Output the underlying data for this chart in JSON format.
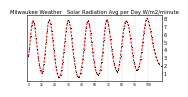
{
  "title": "Milwaukee Weather   Solar Radiation Avg per Day W/m2/minute",
  "bg_color": "#ffffff",
  "line_color": "#dd0000",
  "dot_color": "#000000",
  "grid_color": "#aaaaaa",
  "y_values": [
    3.2,
    4.1,
    5.8,
    7.2,
    7.8,
    7.5,
    6.8,
    5.5,
    4.2,
    3.0,
    2.1,
    1.4,
    1.0,
    1.3,
    2.2,
    3.5,
    5.0,
    6.5,
    7.6,
    7.9,
    7.4,
    6.5,
    5.3,
    4.0,
    2.8,
    1.8,
    1.0,
    0.6,
    0.5,
    0.8,
    1.5,
    2.5,
    3.8,
    5.2,
    6.5,
    7.5,
    7.9,
    7.6,
    6.8,
    5.6,
    4.2,
    3.0,
    2.0,
    1.2,
    0.7,
    0.5,
    0.6,
    1.0,
    1.8,
    2.8,
    4.0,
    5.5,
    6.8,
    7.6,
    7.8,
    7.2,
    6.2,
    5.0,
    3.7,
    2.6,
    1.8,
    1.2,
    0.9,
    0.8,
    1.0,
    1.5,
    2.5,
    3.8,
    5.3,
    6.8,
    7.7,
    7.9,
    7.4,
    6.5,
    5.4,
    4.2,
    3.2,
    2.4,
    1.8,
    1.4,
    1.2,
    1.5,
    2.2,
    3.2,
    4.5,
    5.8,
    6.9,
    7.5,
    7.8,
    7.6,
    7.2,
    6.5,
    5.5,
    4.4,
    3.4,
    2.5,
    1.9,
    1.5,
    1.4,
    1.6,
    2.0,
    2.8,
    3.8,
    5.0,
    6.2,
    7.2,
    7.9,
    8.1,
    7.8,
    7.2,
    6.5,
    5.7,
    4.9,
    4.2,
    3.6,
    3.1,
    2.7,
    2.4,
    2.2,
    2.0
  ],
  "ylim": [
    0,
    8.5
  ],
  "yticks": [
    1,
    2,
    3,
    4,
    5,
    6,
    7,
    8
  ],
  "ytick_labels": [
    "1",
    "2",
    "3",
    "4",
    "5",
    "6",
    "7",
    "8"
  ],
  "ylabel_fontsize": 3.5,
  "grid_x_positions": [
    12,
    24,
    36,
    48,
    60,
    72,
    84,
    96,
    108
  ],
  "title_fontsize": 3.8,
  "line_width": 0.7,
  "marker_size": 0.8
}
